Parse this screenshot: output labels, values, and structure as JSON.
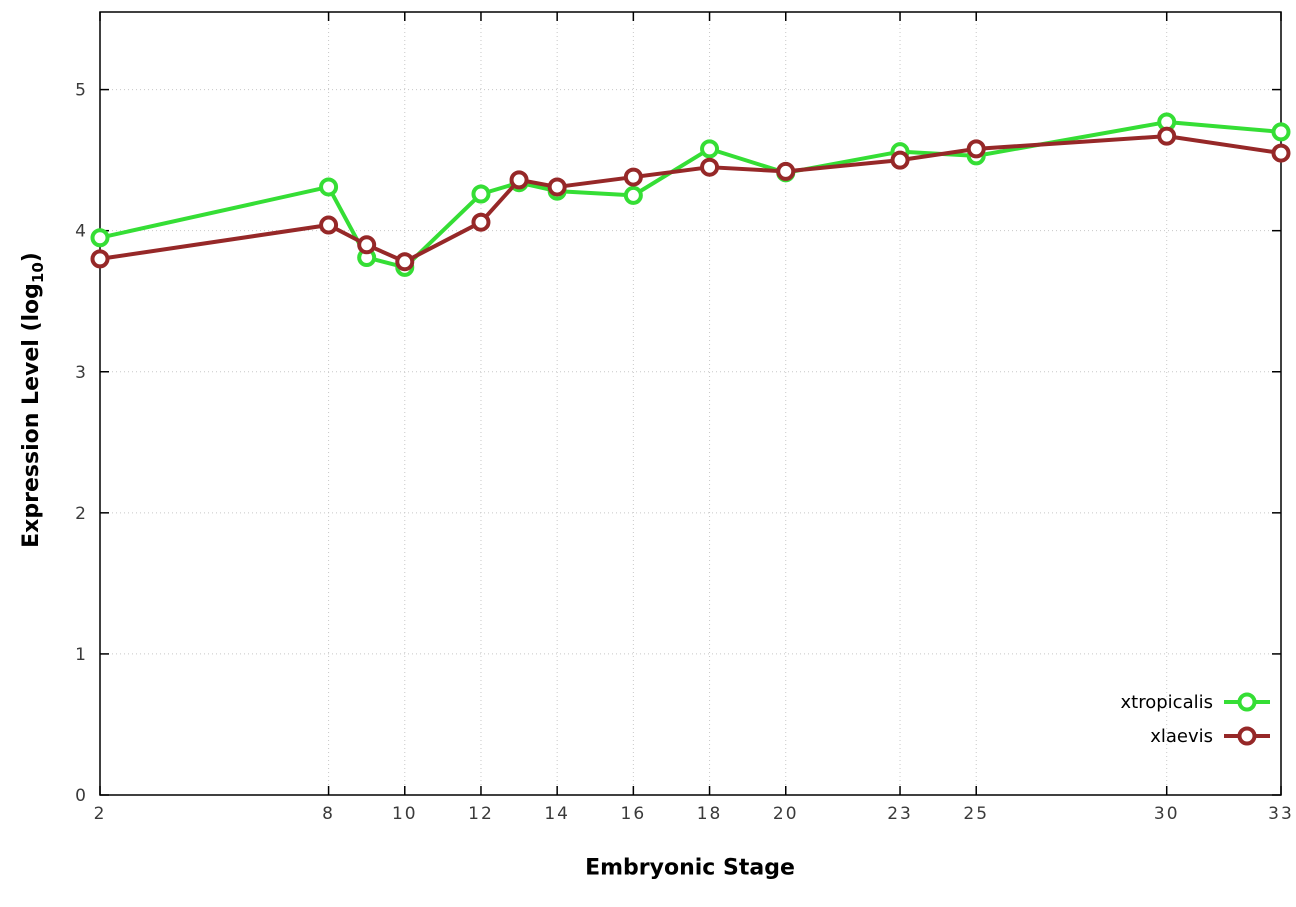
{
  "figure": {
    "background": "#ffffff",
    "xlabel": "Embryonic Stage",
    "ylabel": {
      "pre": "Expression Level (log",
      "sub": "10",
      "post": ")"
    },
    "tick_color": "#3a3a3a",
    "grid_color": "#c8c8c8",
    "border_color": "#000000"
  },
  "chart_data": {
    "type": "line",
    "title": "",
    "xlabel": "Embryonic Stage",
    "ylabel": "Expression Level (log10)",
    "x": [
      2,
      8,
      9,
      10,
      12,
      13,
      14,
      16,
      18,
      20,
      23,
      25,
      30,
      33
    ],
    "series": [
      {
        "name": "xtropicalis",
        "color": "#35DE35",
        "marker": "open-circle",
        "values": [
          3.95,
          4.31,
          3.81,
          3.74,
          4.26,
          4.34,
          4.28,
          4.25,
          4.58,
          4.41,
          4.56,
          4.53,
          4.77,
          4.7
        ]
      },
      {
        "name": "xlaevis",
        "color": "#962828",
        "marker": "open-circle",
        "values": [
          3.8,
          4.04,
          3.9,
          3.78,
          4.06,
          4.36,
          4.31,
          4.38,
          4.45,
          4.42,
          4.5,
          4.58,
          4.67,
          4.55
        ]
      }
    ],
    "xticks": [
      "2",
      "8",
      "10",
      "12",
      "14",
      "16",
      "18",
      "20",
      "23",
      "25",
      "30",
      "33"
    ],
    "xtick_values": [
      2,
      8,
      10,
      12,
      14,
      16,
      18,
      20,
      23,
      25,
      30,
      33
    ],
    "yticks": [
      "0",
      "1",
      "2",
      "3",
      "4",
      "5"
    ],
    "ytick_values": [
      0,
      1,
      2,
      3,
      4,
      5
    ],
    "xlim": [
      2,
      33
    ],
    "ylim": [
      0,
      5.55
    ],
    "grid": true,
    "legend_position": "bottom-right-inside",
    "legend_items": [
      "xtropicalis",
      "xlaevis"
    ]
  }
}
